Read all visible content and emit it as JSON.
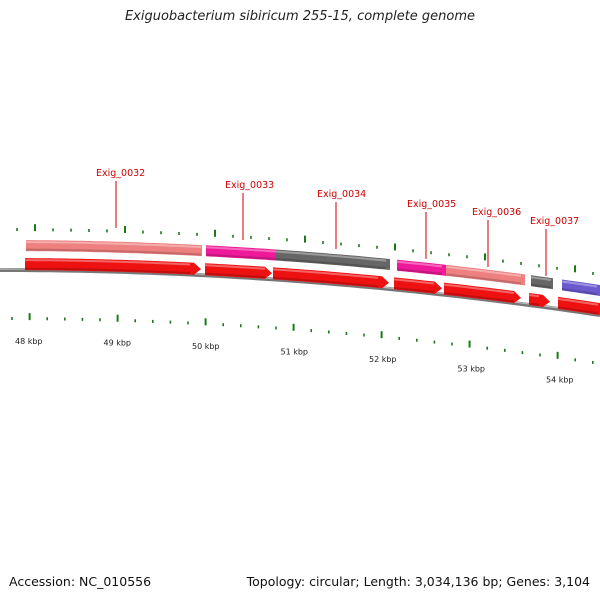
{
  "title": "Exiguobacterium sibiricum 255-15, complete genome",
  "footer": {
    "accession": "Accession: NC_010556",
    "summary": "Topology: circular; Length: 3,034,136 bp; Genes: 3,104"
  },
  "colors": {
    "cds": "#ee1111",
    "label": "#cc0000",
    "tick": "#1a7a1a",
    "backbone": "#888888",
    "salmon": "#ee8080",
    "magenta": "#ee1a99",
    "gray": "#666666",
    "purple": "#6a5acd"
  },
  "gene_labels": [
    "Exig_0032",
    "Exig_0033",
    "Exig_0034",
    "Exig_0035",
    "Exig_0036",
    "Exig_0037"
  ],
  "kbp_labels": [
    "48 kbp",
    "49 kbp",
    "50 kbp",
    "51 kbp",
    "52 kbp",
    "53 kbp",
    "54 kbp"
  ]
}
